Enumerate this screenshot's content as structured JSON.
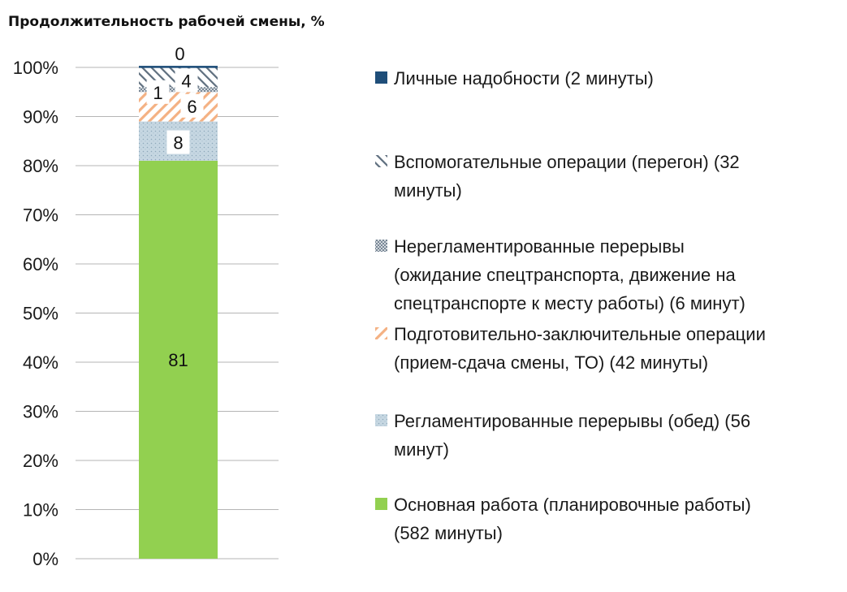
{
  "chart_data": {
    "type": "bar",
    "stacked": true,
    "title": "Продолжительность рабочей смены, %",
    "xlabel": "",
    "ylabel": "",
    "ylim": [
      0,
      100
    ],
    "y_ticks": [
      "0%",
      "10%",
      "20%",
      "30%",
      "40%",
      "50%",
      "60%",
      "70%",
      "80%",
      "90%",
      "100%"
    ],
    "grid": true,
    "legend_position": "right",
    "categories": [
      ""
    ],
    "series": [
      {
        "name": "Основная работа (планировочные работы) (582 минуты)",
        "values": [
          81
        ],
        "label": "81",
        "color": "#92d050",
        "pattern": "solid"
      },
      {
        "name": "Регламентированные перерывы (обед) (56 минут)",
        "values": [
          8
        ],
        "label": "8",
        "color": "#b9cfdc",
        "pattern": "dots"
      },
      {
        "name": "Подготовительно-заключительные операции (прием-сдача смены, ТО) (42 минуты)",
        "values": [
          6
        ],
        "label": "6",
        "color": "#f4b183",
        "pattern": "diagonal"
      },
      {
        "name": "Нерегламентированные перерывы (ожидание спецтранспорта, движение  на спецтранспорте к месту работы) (6 минут)",
        "values": [
          1
        ],
        "label": "1",
        "color": "#8c9aa8",
        "pattern": "crosshatch"
      },
      {
        "name": "Вспомогательные операции (перегон) (32 минуты)",
        "values": [
          4
        ],
        "label": "4",
        "color": "#6f7f8f",
        "pattern": "wide-diagonal"
      },
      {
        "name": "Личные надобности (2 минуты)",
        "values": [
          0.3
        ],
        "label": "0",
        "color": "#1f4e79",
        "pattern": "solid"
      }
    ],
    "legend": [
      {
        "lines": [
          "Личные надобности (2 минуты)"
        ],
        "color": "#1f4e79",
        "pattern": "solid"
      },
      {
        "lines": [
          "Вспомогательные операции (перегон) (32",
          "минуты)"
        ],
        "color": "#6f7f8f",
        "pattern": "wide-diagonal"
      },
      {
        "lines": [
          "Нерегламентированные перерывы",
          "(ожидание спецтранспорта, движение  на",
          "спецтранспорте к месту работы) (6 минут)"
        ],
        "color": "#8c9aa8",
        "pattern": "crosshatch"
      },
      {
        "lines": [
          "Подготовительно-заключительные операции",
          "(прием-сдача смены, ТО) (42 минуты)"
        ],
        "color": "#f4b183",
        "pattern": "diagonal"
      },
      {
        "lines": [
          "Регламентированные перерывы (обед) (56",
          "минут)"
        ],
        "color": "#b9cfdc",
        "pattern": "dots"
      },
      {
        "lines": [
          "Основная работа (планировочные работы)",
          "(582 минуты)"
        ],
        "color": "#92d050",
        "pattern": "solid"
      }
    ]
  }
}
